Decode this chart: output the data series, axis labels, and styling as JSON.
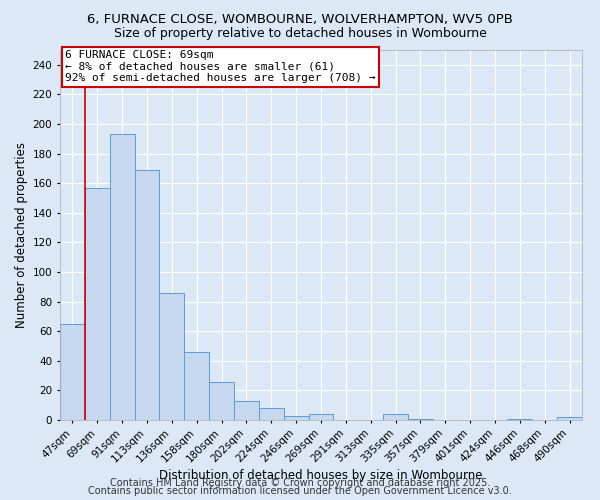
{
  "title": "6, FURNACE CLOSE, WOMBOURNE, WOLVERHAMPTON, WV5 0PB",
  "subtitle": "Size of property relative to detached houses in Wombourne",
  "xlabel": "Distribution of detached houses by size in Wombourne",
  "ylabel": "Number of detached properties",
  "categories": [
    "47sqm",
    "69sqm",
    "91sqm",
    "113sqm",
    "136sqm",
    "158sqm",
    "180sqm",
    "202sqm",
    "224sqm",
    "246sqm",
    "269sqm",
    "291sqm",
    "313sqm",
    "335sqm",
    "357sqm",
    "379sqm",
    "401sqm",
    "424sqm",
    "446sqm",
    "468sqm",
    "490sqm"
  ],
  "values": [
    65,
    157,
    193,
    169,
    86,
    46,
    26,
    13,
    8,
    3,
    4,
    0,
    0,
    4,
    1,
    0,
    0,
    0,
    1,
    0,
    2
  ],
  "bar_color": "#c5d8f0",
  "bar_edge_color": "#5b9bd5",
  "highlight_index": 1,
  "highlight_line_color": "#cc0000",
  "annotation_text": "6 FURNACE CLOSE: 69sqm\n← 8% of detached houses are smaller (61)\n92% of semi-detached houses are larger (708) →",
  "annotation_box_color": "#ffffff",
  "annotation_box_edge_color": "#cc0000",
  "ylim": [
    0,
    250
  ],
  "yticks": [
    0,
    20,
    40,
    60,
    80,
    100,
    120,
    140,
    160,
    180,
    200,
    220,
    240
  ],
  "background_color": "#dce8f5",
  "grid_color": "#ffffff",
  "footer1": "Contains HM Land Registry data © Crown copyright and database right 2025.",
  "footer2": "Contains public sector information licensed under the Open Government Licence v3.0.",
  "title_fontsize": 9.5,
  "subtitle_fontsize": 9,
  "axis_label_fontsize": 8.5,
  "tick_fontsize": 7.5,
  "annotation_fontsize": 8,
  "footer_fontsize": 7
}
